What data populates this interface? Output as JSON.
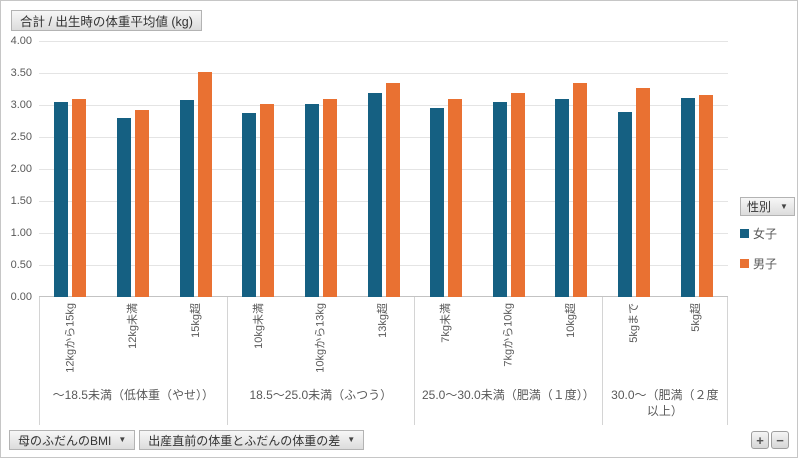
{
  "title": "合計 / 出生時の体重平均値 (kg)",
  "icons": {
    "dropdown": "▼",
    "plus": "+",
    "minus": "−"
  },
  "colors": {
    "female": "#156082",
    "male": "#E97132",
    "gridline": "#E4E4E4",
    "axis_text": "#595959"
  },
  "y_axis": {
    "ticks": [
      "4.00",
      "3.50",
      "3.00",
      "2.50",
      "2.00",
      "1.50",
      "1.00",
      "0.50",
      "0.00"
    ]
  },
  "legend": {
    "field_label": "性別",
    "items": [
      {
        "label": "女子",
        "color": "#156082"
      },
      {
        "label": "男子",
        "color": "#E97132"
      }
    ]
  },
  "filters": [
    {
      "label": "母のふだんのBMI"
    },
    {
      "label": "出産直前の体重とふだんの体重の差"
    }
  ],
  "expand_buttons": {
    "plus": "+",
    "minus": "−"
  },
  "chart_data": {
    "type": "bar",
    "title": "合計 / 出生時の体重平均値 (kg)",
    "ylabel": "出生時の体重平均値 (kg)",
    "ylim": [
      0,
      4.0
    ],
    "y_tick_step": 0.5,
    "grid": true,
    "legend_position": "right",
    "series_names": [
      "女子",
      "男子"
    ],
    "groups": [
      {
        "label": "～18.5未満（低体重（やせ））",
        "categories": [
          "12kgから15kg",
          "12kg未満",
          "15kg超"
        ],
        "values": {
          "女子": [
            3.04,
            2.79,
            3.08
          ],
          "男子": [
            3.09,
            2.92,
            3.51
          ]
        }
      },
      {
        "label": "18.5～25.0未満（ふつう）",
        "categories": [
          "10kg未満",
          "10kgから13kg",
          "13kg超"
        ],
        "values": {
          "女子": [
            2.87,
            3.02,
            3.19
          ],
          "男子": [
            3.02,
            3.1,
            3.34
          ]
        }
      },
      {
        "label": "25.0～30.0未満（肥満（１度））",
        "categories": [
          "7kg未満",
          "7kgから10kg",
          "10kg超"
        ],
        "values": {
          "女子": [
            2.95,
            3.05,
            3.09
          ],
          "男子": [
            3.1,
            3.18,
            3.35
          ]
        }
      },
      {
        "label": "30.0～（肥満（２度以上）",
        "categories": [
          "5kgまで",
          "5kg超"
        ],
        "values": {
          "女子": [
            2.89,
            3.11
          ],
          "男子": [
            3.27,
            3.16
          ]
        }
      }
    ]
  }
}
